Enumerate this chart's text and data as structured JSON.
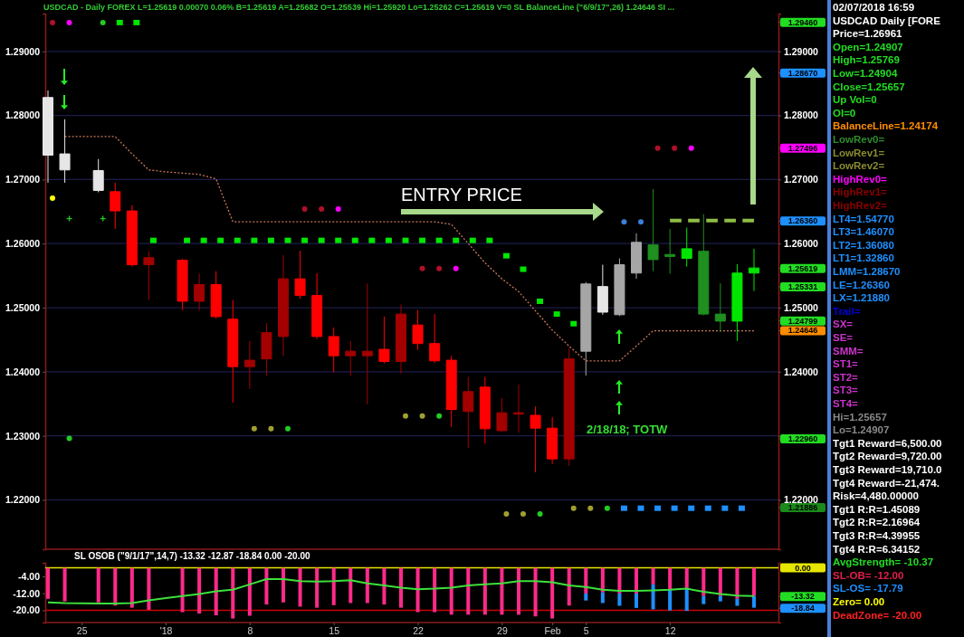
{
  "chart_data": [
    {
      "type": "candlestick",
      "title": "USDCAD - Daily  FOREX  L=1.25619  0.00070  0.06%  B=1.25619  A=1.25682  O=1.25539  Hi=1.25920  Lo=1.25262  C=1.25619  V=0  SL  BalanceLine (\"6/9/17\",26)  1.24646  SI ...",
      "categories": [
        null,
        null,
        null,
        null,
        null,
        null,
        null,
        null,
        null,
        null,
        null,
        null,
        null,
        null,
        null,
        null,
        null,
        null,
        null,
        null,
        null,
        null,
        null,
        null,
        null,
        null,
        null,
        null,
        null,
        null,
        null,
        null,
        null,
        null,
        null,
        null,
        null,
        null,
        null,
        null,
        null,
        null,
        null
      ],
      "ohlc": [
        [
          1.2738,
          1.2839,
          1.2695,
          1.2828
        ],
        [
          1.2715,
          1.2794,
          1.2695,
          1.274
        ],
        null,
        [
          1.2683,
          1.2732,
          1.268,
          1.2714
        ],
        [
          1.2681,
          1.2695,
          1.2623,
          1.2651
        ],
        [
          1.2651,
          1.266,
          1.2564,
          1.2567
        ],
        [
          1.2567,
          1.2588,
          1.2512,
          1.2578
        ],
        null,
        [
          1.2574,
          1.2576,
          1.2496,
          1.251
        ],
        [
          1.251,
          1.2553,
          1.2496,
          1.2536
        ],
        [
          1.2536,
          1.2557,
          1.2483,
          1.2486
        ],
        [
          1.2482,
          1.2512,
          1.2352,
          1.2408
        ],
        [
          1.2408,
          1.2448,
          1.2373,
          1.2418
        ],
        [
          1.242,
          1.2476,
          1.2394,
          1.2461
        ],
        [
          1.2455,
          1.2582,
          1.2425,
          1.2545
        ],
        [
          1.2545,
          1.2589,
          1.2514,
          1.2519
        ],
        [
          1.2519,
          1.2554,
          1.2451,
          1.2455
        ],
        [
          1.2455,
          1.2469,
          1.2399,
          1.2425
        ],
        [
          1.2425,
          1.2448,
          1.2394,
          1.2432
        ],
        [
          1.2425,
          1.2538,
          1.2349,
          1.2432
        ],
        [
          1.2435,
          1.2486,
          1.2413,
          1.2416
        ],
        [
          1.2416,
          1.2505,
          1.2397,
          1.249
        ],
        [
          1.2473,
          1.2496,
          1.2434,
          1.2444
        ],
        [
          1.2444,
          1.249,
          1.2414,
          1.2417
        ],
        [
          1.2418,
          1.2425,
          1.2314,
          1.2341
        ],
        [
          1.2338,
          1.2392,
          1.2281,
          1.2369
        ],
        [
          1.2376,
          1.2392,
          1.2288,
          1.2311
        ],
        [
          1.2308,
          1.2359,
          1.2306,
          1.2336
        ],
        [
          1.2334,
          1.238,
          1.2305,
          1.2336
        ],
        [
          1.2332,
          1.2346,
          1.2243,
          1.2312
        ],
        [
          1.2312,
          1.2329,
          1.2256,
          1.2264
        ],
        [
          1.2264,
          1.2437,
          1.2253,
          1.242
        ],
        [
          1.2432,
          1.254,
          1.2394,
          1.2537
        ],
        [
          1.2493,
          1.2567,
          1.2489,
          1.2533
        ],
        [
          1.2489,
          1.2577,
          1.2487,
          1.2567
        ],
        [
          1.2554,
          1.2616,
          1.2545,
          1.2602
        ],
        [
          1.2598,
          1.2685,
          1.2557,
          1.2575
        ],
        [
          1.2583,
          1.2623,
          1.2553,
          1.258
        ],
        [
          1.2577,
          1.2625,
          1.2564,
          1.2592
        ],
        [
          1.2588,
          1.2646,
          1.2488,
          1.249
        ],
        [
          1.249,
          1.2538,
          1.2462,
          1.2479
        ],
        [
          1.2479,
          1.2568,
          1.2448,
          1.2554
        ],
        [
          1.2554,
          1.2592,
          1.2526,
          1.2562
        ]
      ],
      "colors": [
        "#e6e6e6",
        "#e6e6e6",
        null,
        "#e6e6e6",
        "#ff0000",
        "#ff0000",
        "#a30000",
        null,
        "#ff0000",
        "#a30000",
        "#ff0000",
        "#ff0000",
        "#a30000",
        "#a30000",
        "#a30000",
        "#ff0000",
        "#ff0000",
        "#ff0000",
        "#a30000",
        "#a30000",
        "#ff0000",
        "#a30000",
        "#ff0000",
        "#ff0000",
        "#ff0000",
        "#a30000",
        "#ff0000",
        "#a30000",
        "#a30000",
        "#ff0000",
        "#ff0000",
        "#a30000",
        "#a6a6a6",
        "#e6e6e6",
        "#a6a6a6",
        "#a6a6a6",
        "#1f8f1f",
        "#1f8f1f",
        "#00e600",
        "#1f8f1f",
        "#1f8f1f",
        "#00e600",
        "#00e600"
      ],
      "series": [
        {
          "type": "line",
          "color": "#c8785a",
          "line_style": "dotted",
          "values": [
            null,
            1.2767,
            1.2767,
            1.2767,
            1.2767,
            1.274,
            1.2715,
            1.2712,
            1.271,
            1.2708,
            1.2701,
            1.2634,
            1.2634,
            1.2634,
            1.2634,
            1.2634,
            1.2634,
            1.2634,
            1.2634,
            1.2634,
            1.2634,
            1.2634,
            1.2634,
            1.2634,
            1.263,
            1.26,
            1.257,
            1.2545,
            1.2525,
            1.2495,
            1.2465,
            1.244,
            1.2417,
            1.2417,
            1.2417,
            1.244,
            1.2464,
            1.2464,
            1.2464,
            1.2464,
            1.2464,
            1.2464,
            1.2464
          ]
        },
        {
          "type": "line",
          "color": "#8fbc45",
          "line_style": "dashed",
          "values": [
            null,
            null,
            null,
            null,
            null,
            null,
            null,
            null,
            null,
            null,
            null,
            null,
            null,
            null,
            null,
            null,
            null,
            null,
            null,
            null,
            null,
            null,
            null,
            null,
            null,
            null,
            null,
            null,
            null,
            null,
            null,
            null,
            null,
            null,
            null,
            null,
            null,
            1.2636,
            1.2636,
            1.2636,
            1.2636,
            1.2636,
            1.2636
          ]
        },
        {
          "type": "scatter",
          "marker": "square",
          "color": "#00e600",
          "values": [
            null,
            null,
            null,
            null,
            1.2945,
            1.2945,
            1.2605,
            null,
            1.2605,
            1.2605,
            1.2605,
            1.2605,
            1.2605,
            1.2605,
            1.2605,
            1.2605,
            1.2605,
            1.2605,
            1.2605,
            1.2605,
            1.2605,
            1.2605,
            1.2605,
            1.2605,
            1.2605,
            1.2605,
            1.2605,
            1.2581,
            1.256,
            1.251,
            1.249,
            1.2475,
            null,
            null,
            null,
            null,
            null,
            null,
            null,
            null,
            null,
            null,
            null
          ]
        },
        {
          "type": "scatter",
          "marker": "circle",
          "color": "#b0102a",
          "values": [
            1.2945,
            null,
            null,
            null,
            null,
            null,
            null,
            null,
            null,
            null,
            null,
            null,
            null,
            null,
            null,
            1.2654,
            1.2654,
            null,
            null,
            null,
            null,
            null,
            1.2561,
            1.2561,
            null,
            null,
            null,
            null,
            null,
            null,
            null,
            null,
            null,
            null,
            null,
            null,
            1.2749,
            1.2749,
            null,
            null,
            null,
            null,
            null
          ]
        },
        {
          "type": "scatter",
          "marker": "circle",
          "color": "#ff00ff",
          "values": [
            null,
            1.2945,
            null,
            null,
            null,
            null,
            null,
            null,
            null,
            null,
            null,
            null,
            null,
            null,
            null,
            null,
            null,
            1.2654,
            null,
            null,
            null,
            null,
            null,
            null,
            1.2561,
            null,
            null,
            null,
            null,
            null,
            null,
            null,
            null,
            null,
            null,
            null,
            null,
            null,
            1.2749,
            null,
            null,
            null,
            null
          ]
        },
        {
          "type": "scatter",
          "marker": "circle",
          "color": "#a0a030",
          "values": [
            null,
            null,
            null,
            null,
            null,
            null,
            null,
            null,
            null,
            null,
            null,
            null,
            1.2311,
            1.2311,
            null,
            null,
            null,
            null,
            null,
            null,
            null,
            1.2331,
            1.2331,
            null,
            null,
            null,
            null,
            1.2178,
            1.2178,
            null,
            null,
            1.2187,
            1.2187,
            null,
            null,
            null,
            null,
            null,
            null,
            null,
            null,
            null,
            null
          ]
        },
        {
          "type": "scatter",
          "marker": "circle",
          "color": "#22cc22",
          "values": [
            null,
            1.2296,
            null,
            1.2945,
            null,
            null,
            null,
            null,
            null,
            null,
            null,
            null,
            null,
            null,
            1.2311,
            null,
            null,
            null,
            null,
            null,
            null,
            null,
            null,
            1.2331,
            null,
            null,
            null,
            null,
            null,
            1.2178,
            null,
            null,
            null,
            1.2187,
            null,
            null,
            null,
            null,
            null,
            null,
            null,
            null,
            null
          ]
        },
        {
          "type": "scatter",
          "marker": "circle",
          "color": "#ffff00",
          "values": [
            1.2671,
            null,
            null,
            null,
            null,
            null,
            null,
            null,
            null,
            null,
            null,
            null,
            null,
            null,
            null,
            null,
            null,
            null,
            null,
            null,
            null,
            null,
            null,
            null,
            null,
            null,
            null,
            null,
            null,
            null,
            null,
            null,
            null,
            null,
            null,
            null,
            null,
            null,
            null,
            null,
            null,
            null,
            null
          ]
        },
        {
          "type": "scatter",
          "marker": "cross",
          "color": "#22cc22",
          "values": [
            null,
            1.2639,
            null,
            1.2639,
            null,
            null,
            null,
            null,
            null,
            null,
            null,
            null,
            null,
            null,
            null,
            null,
            null,
            null,
            null,
            null,
            null,
            null,
            null,
            null,
            null,
            null,
            null,
            null,
            null,
            null,
            null,
            null,
            null,
            null,
            null,
            null,
            null,
            null,
            null,
            null,
            null,
            null,
            null
          ]
        },
        {
          "type": "scatter",
          "marker": "circle",
          "color": "#3a7fd8",
          "values": [
            null,
            null,
            null,
            null,
            null,
            null,
            null,
            null,
            null,
            null,
            null,
            null,
            null,
            null,
            null,
            null,
            null,
            null,
            null,
            null,
            null,
            null,
            null,
            null,
            null,
            null,
            null,
            null,
            null,
            null,
            null,
            null,
            null,
            null,
            1.2634,
            1.2634,
            null,
            null,
            null,
            null,
            null,
            null,
            null
          ]
        },
        {
          "type": "scatter",
          "marker": "square",
          "color": "#1e90ff",
          "values": [
            null,
            null,
            null,
            null,
            null,
            null,
            null,
            null,
            null,
            null,
            null,
            null,
            null,
            null,
            null,
            null,
            null,
            null,
            null,
            null,
            null,
            null,
            null,
            null,
            null,
            null,
            null,
            null,
            null,
            null,
            null,
            null,
            null,
            null,
            1.2187,
            1.2187,
            1.2187,
            1.2187,
            1.2187,
            1.2187,
            1.2187,
            1.2187,
            null
          ]
        }
      ],
      "ylim": [
        1.2123,
        1.2959
      ],
      "yticks": [
        {
          "value": 1.22,
          "label": "1.22000"
        },
        {
          "value": 1.23,
          "label": "1.23000"
        },
        {
          "value": 1.24,
          "label": "1.24000"
        },
        {
          "value": 1.25,
          "label": "1.25000"
        },
        {
          "value": 1.26,
          "label": "1.26000"
        },
        {
          "value": 1.27,
          "label": "1.27000"
        },
        {
          "value": 1.28,
          "label": "1.28000"
        },
        {
          "value": 1.29,
          "label": "1.29000"
        }
      ],
      "y2lim": [
        1.2123,
        1.2959
      ],
      "y2ticks": [
        {
          "value": 1.22,
          "label": "1.22000"
        },
        {
          "value": 1.23,
          "label": null
        },
        {
          "value": 1.24,
          "label": "1.24000"
        },
        {
          "value": 1.25,
          "label": "1.25000"
        },
        {
          "value": 1.26,
          "label": "1.26000"
        },
        {
          "value": 1.27,
          "label": "1.27000"
        },
        {
          "value": 1.28,
          "label": "1.28000"
        },
        {
          "value": 1.29,
          "label": "1.29000"
        },
        {
          "value": 1.2946,
          "label": "1.29460"
        },
        {
          "value": 1.2867,
          "label": "1.28670"
        },
        {
          "value": 1.27496,
          "label": "1.27496"
        },
        {
          "value": 1.2636,
          "label": "1.26360"
        },
        {
          "value": 1.25619,
          "label": "1.25619"
        },
        {
          "value": 1.25331,
          "label": "1.25331"
        },
        {
          "value": 1.24799,
          "label": "1.24799"
        },
        {
          "value": 1.24646,
          "label": "1.24646"
        },
        {
          "value": 1.2296,
          "label": "1.22960"
        },
        {
          "value": 1.21886,
          "label": "1.21886"
        }
      ],
      "grid": "y",
      "tick_labels": "y",
      "annotations": [
        "ENTRY PRICE",
        "2/18/18; TOTW"
      ]
    },
    {
      "type": "bar",
      "stacked": true,
      "title": "SL   OSOB (\"9/1/17\",14,7)   -13.32   -12.87   -18.84   0.00   -20.00",
      "categories": [
        null,
        null,
        "25",
        null,
        null,
        null,
        null,
        "'18",
        null,
        null,
        null,
        null,
        "8",
        null,
        null,
        null,
        null,
        "15",
        null,
        null,
        null,
        null,
        "22",
        null,
        null,
        null,
        null,
        "29",
        null,
        null,
        "Feb",
        null,
        "5",
        null,
        null,
        null,
        null,
        "12",
        null,
        null,
        null,
        null,
        null
      ],
      "series": [
        {
          "type": "bar",
          "color": "#ff2a8a",
          "values": [
            -14.6,
            -15.8,
            null,
            -16.3,
            -17.8,
            -18.8,
            -19.8,
            null,
            -20.9,
            -21.6,
            -22.4,
            -23.9,
            -22.6,
            -17.3,
            -16.3,
            -18.3,
            -18.8,
            -17.6,
            -16.6,
            -16.6,
            -17.3,
            -18.8,
            -20.9,
            -20.9,
            -22.1,
            -22.1,
            -22.1,
            -22.1,
            -22.1,
            -22.9,
            -23.9,
            -17.8,
            -12.1,
            -11.6,
            -12.1,
            -12.1,
            -7.8,
            -10.3,
            -9.5,
            -13.3,
            -13.3,
            -14.6,
            -13.3
          ]
        },
        {
          "type": "bar",
          "color": "#1e90ff",
          "values": [
            null,
            null,
            null,
            null,
            null,
            null,
            null,
            null,
            null,
            null,
            null,
            null,
            null,
            null,
            null,
            null,
            null,
            null,
            null,
            null,
            null,
            null,
            null,
            null,
            null,
            null,
            null,
            null,
            null,
            null,
            null,
            null,
            -3.3,
            -5.0,
            -5.8,
            -6.8,
            -11.8,
            -9.8,
            -10.8,
            -3.8,
            -2.5,
            -3.3,
            -5.5
          ]
        },
        {
          "type": "line",
          "color": "#3ce03c",
          "line_style": "solid",
          "values": [
            -16.3,
            -16.6,
            -16.7,
            -16.8,
            -16.8,
            -16.6,
            -15.3,
            -14.3,
            -13.3,
            -12.3,
            -11.1,
            -10.3,
            -7.8,
            -5.3,
            -5.3,
            -6.3,
            -6.5,
            -6.3,
            -5.8,
            -7.3,
            -8.3,
            -9.3,
            -10.1,
            -9.8,
            -9.3,
            -8.3,
            -7.8,
            -7.3,
            -6.3,
            -6.3,
            -6.8,
            -8.3,
            -9.0,
            -10.3,
            -10.8,
            -10.8,
            -10.6,
            -10.3,
            -9.8,
            -11.3,
            -12.3,
            -13.1,
            -13.3
          ]
        }
      ],
      "ylim": [
        -25.8,
        2.4
      ],
      "yticks": [
        {
          "value": -20,
          "label": "-20.00"
        },
        {
          "value": -12,
          "label": "-12.00"
        },
        {
          "value": -4,
          "label": "-4.00"
        }
      ],
      "ref_lines": [
        {
          "axis": "y",
          "value": 0,
          "label": "0.00",
          "color": "#e6e600"
        },
        {
          "axis": "y",
          "value": -20,
          "color": "#cc0000"
        }
      ],
      "y2lim": [
        -25.8,
        2.4
      ],
      "y2ticks": [
        {
          "value": -13.32,
          "label": "-13.32"
        },
        {
          "value": -18.84,
          "label": "-18.84"
        }
      ]
    },
    {
      "type": "other",
      "title": "02/07/2018 16:59",
      "annotations": [
        "USDCAD Daily [FORE",
        "Price=1.26961",
        "Open=1.24907",
        "High=1.25769",
        "Low=1.24904",
        "Close=1.25657",
        "Up Vol=0",
        "OI=0",
        "BalanceLine=1.24174",
        "LowRev0=",
        "LowRev1=",
        "LowRev2=",
        "HighRev0=",
        "HighRev1=",
        "HighRev2=",
        "LT4=1.54770",
        "LT3=1.46070",
        "LT2=1.36080",
        "LT1=1.32860",
        "LMM=1.28670",
        "LE=1.26360",
        "LX=1.21880",
        "Trail=",
        "SX=",
        "SE=",
        "SMM=",
        "ST1=",
        "ST2=",
        "ST3=",
        "ST4=",
        "Hi=1.25657",
        "Lo=1.24907",
        "Tgt1 Reward=6,500.00",
        "Tgt2 Reward=9,720.00",
        "Tgt3 Reward=19,710.0",
        "Tgt4 Reward=-21,474.",
        "Risk=4,480.00000",
        "Tgt1 R:R=1.45089",
        "Tgt2 R:R=2.16964",
        "Tgt3 R:R=4.39955",
        "Tgt4 R:R=6.34152",
        "AvgStrength= -10.37",
        "SL-OB= -12.00",
        "SL-OS= -17.79",
        "Zero= 0.00",
        "DeadZone= -20.00"
      ]
    }
  ]
}
